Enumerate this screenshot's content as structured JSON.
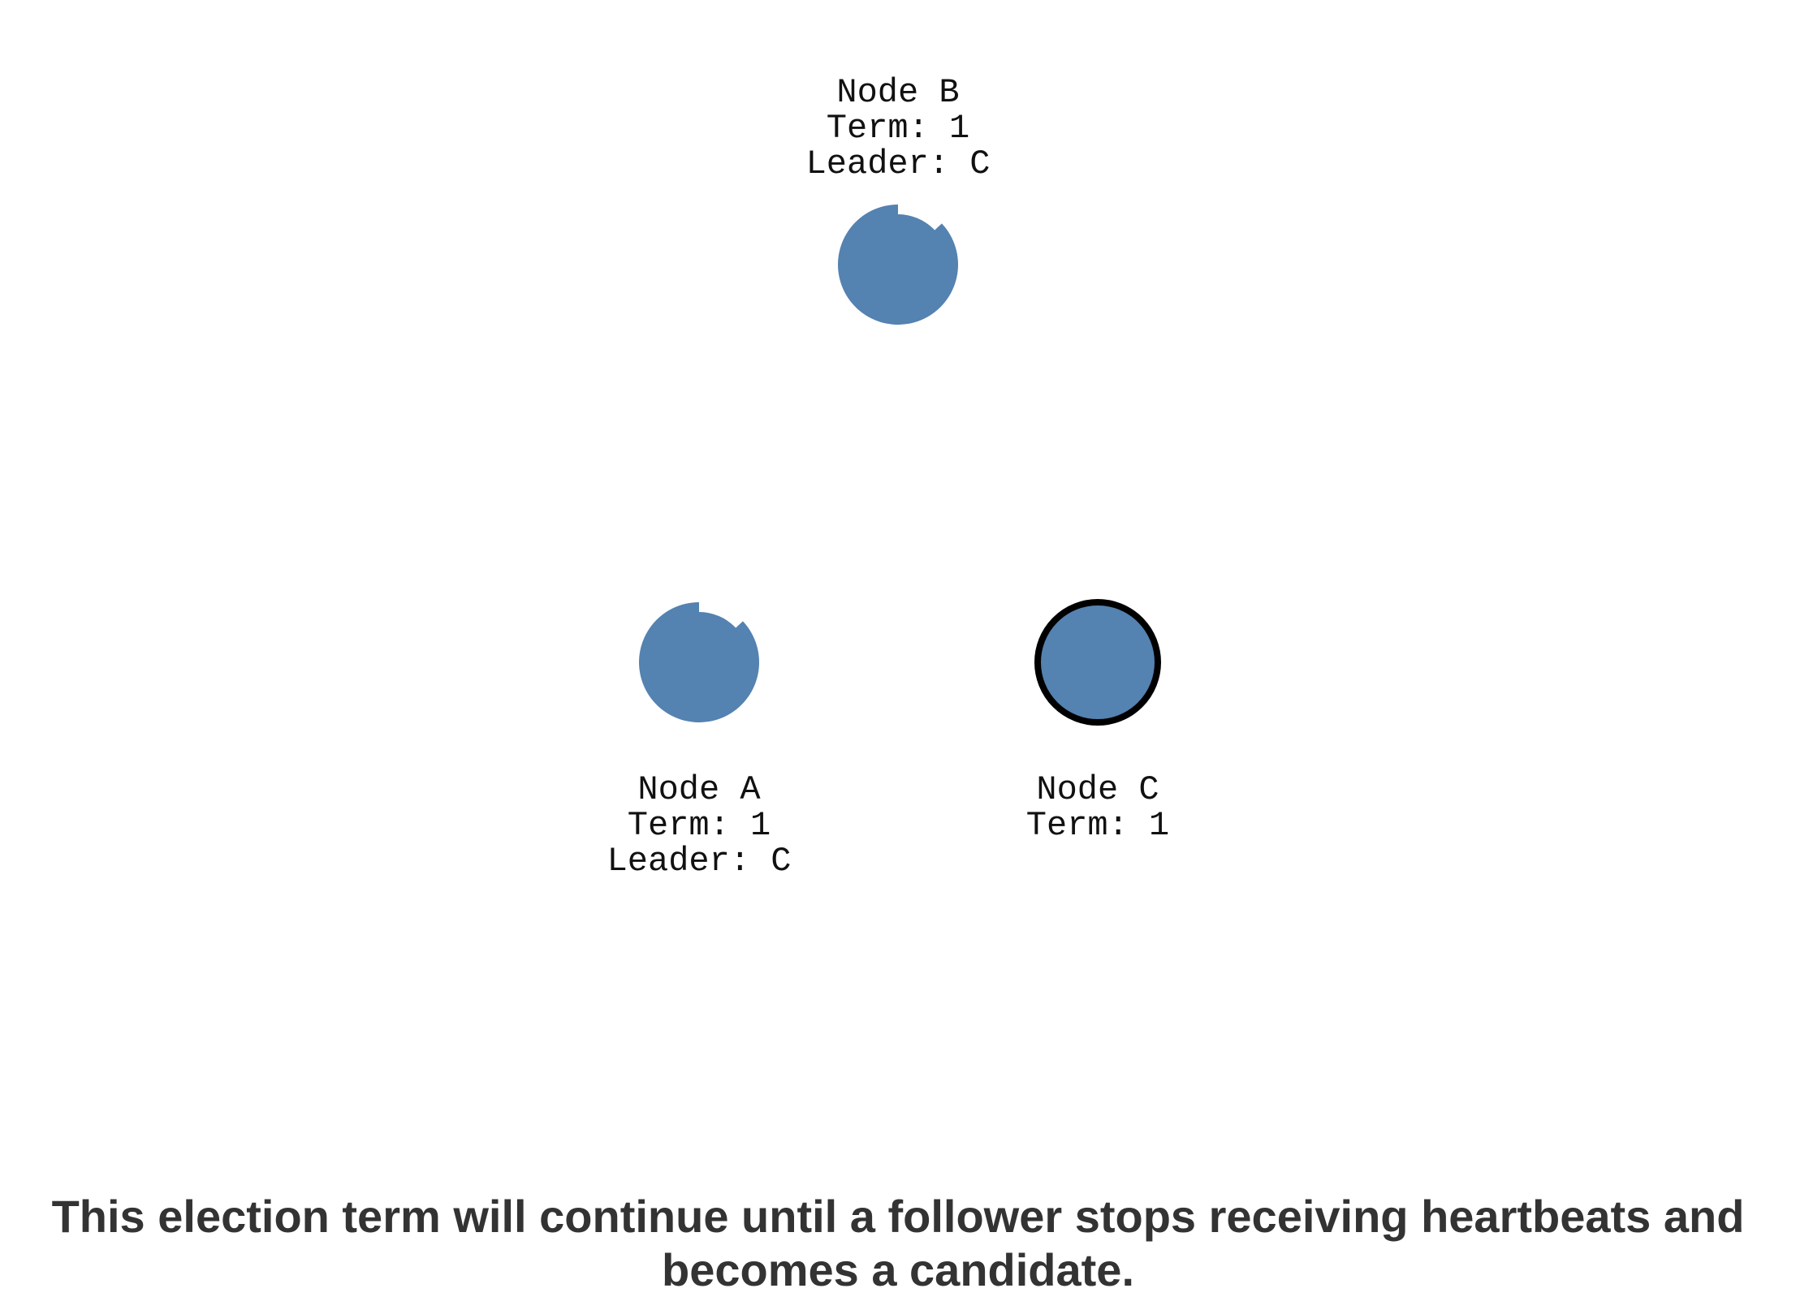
{
  "nodes": {
    "b": {
      "name": "Node B",
      "term": "Term: 1",
      "leader": "Leader: C",
      "role": "follower",
      "timeout_remaining": 0.87
    },
    "a": {
      "name": "Node A",
      "term": "Term: 1",
      "leader": "Leader: C",
      "role": "follower",
      "timeout_remaining": 0.87
    },
    "c": {
      "name": "Node C",
      "term": "Term: 1",
      "role": "leader"
    }
  },
  "caption": "This election term will continue until a follower stops receiving heartbeats and becomes a candidate.",
  "colors": {
    "node_fill": "#5482b1",
    "leader_stroke": "#000000",
    "caption_text": "#333333",
    "label_text": "#111111"
  }
}
